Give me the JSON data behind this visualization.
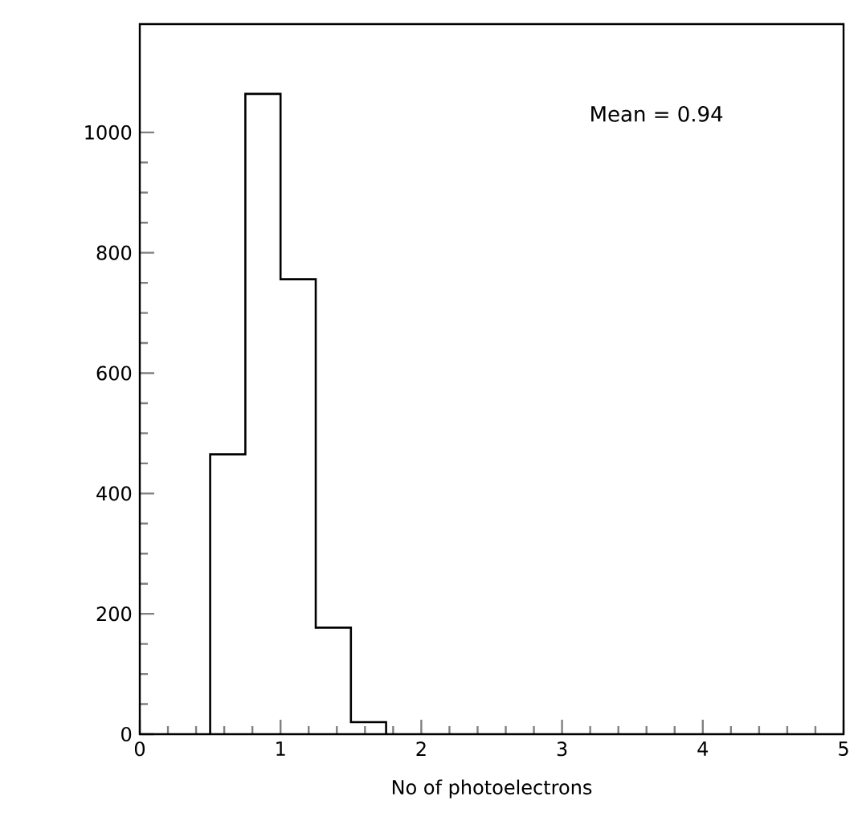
{
  "chart_data": {
    "type": "histogram",
    "xlabel": "No of photoelectrons",
    "annotations": [
      "Mean = 0.94"
    ],
    "bins": [
      0.5,
      0.75,
      1.0,
      1.25,
      1.5,
      1.75
    ],
    "values": [
      465,
      1064,
      756,
      177,
      20
    ],
    "color": "#000000",
    "xlim": [
      0,
      5
    ],
    "ylim": [
      0,
      1180
    ],
    "xticks": [
      0,
      1,
      2,
      3,
      4,
      5
    ],
    "yticks": [
      0,
      200,
      400,
      600,
      800,
      1000
    ],
    "grid": false
  }
}
